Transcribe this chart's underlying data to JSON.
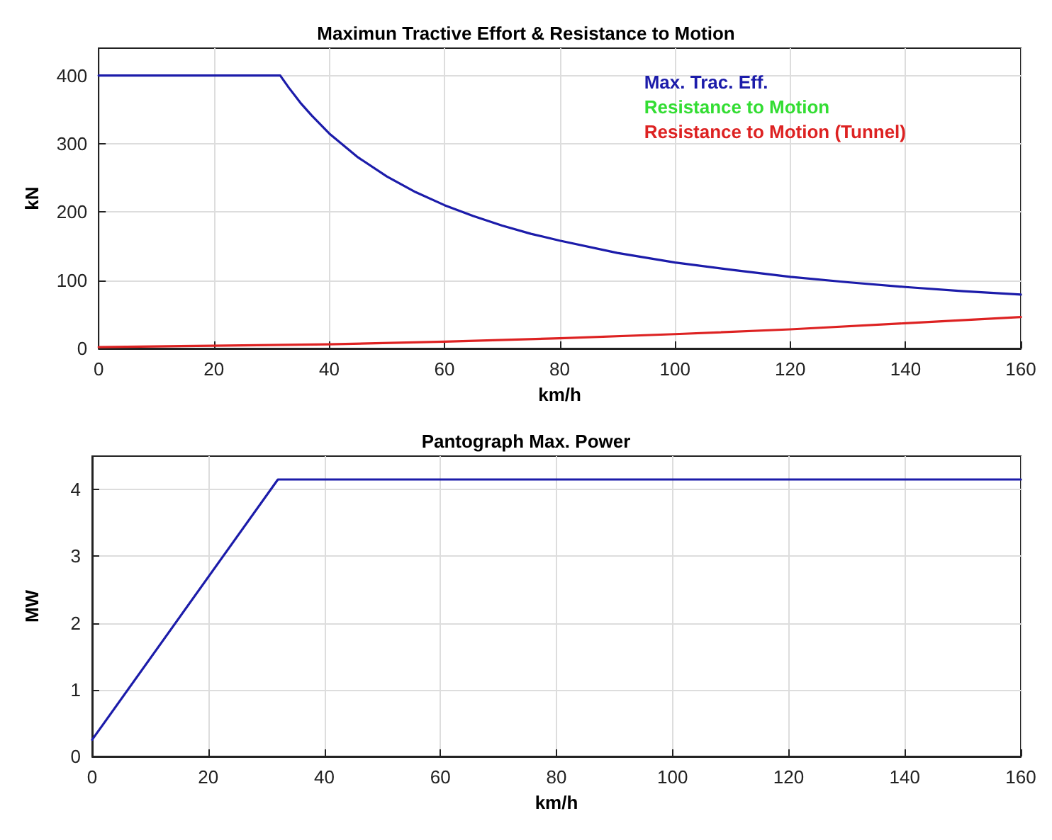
{
  "chart_data": [
    {
      "type": "line",
      "title": "Maximun Tractive Effort & Resistance to Motion",
      "xlabel": "km/h",
      "ylabel": "kN",
      "xlim": [
        0,
        160
      ],
      "xticks": [
        0,
        20,
        40,
        60,
        80,
        100,
        120,
        140,
        160
      ],
      "ylim": [
        0,
        440
      ],
      "yticks": [
        0,
        100,
        200,
        300,
        400
      ],
      "grid": true,
      "legend": "top right",
      "line_style": "solid",
      "marker": "none",
      "series": [
        {
          "name": "Max. Trac. Eff.",
          "color": "#1c1caa",
          "x": [
            0,
            31.5,
            33,
            35,
            37,
            40,
            45,
            50,
            55,
            60,
            65,
            70,
            75,
            80,
            90,
            100,
            110,
            120,
            130,
            140,
            150,
            160
          ],
          "values": [
            400,
            400,
            382,
            360,
            341,
            315,
            280,
            252,
            229,
            210,
            194,
            180,
            168,
            158,
            140,
            126,
            115,
            105,
            97,
            90,
            84,
            79
          ]
        },
        {
          "name": "Resistance to Motion",
          "color": "#33dd33"
        },
        {
          "name": "Resistance to Motion (Tunnel)",
          "color": "#dd2222",
          "x": [
            0,
            20,
            40,
            60,
            80,
            100,
            120,
            140,
            160
          ],
          "values": [
            2,
            4,
            6,
            10,
            15,
            21,
            28,
            37,
            46
          ]
        }
      ]
    },
    {
      "type": "line",
      "title": "Pantograph Max. Power",
      "xlabel": "km/h",
      "ylabel": "MW",
      "xlim": [
        0,
        160
      ],
      "xticks": [
        0,
        20,
        40,
        60,
        80,
        100,
        120,
        140,
        160
      ],
      "ylim": [
        0,
        4.5
      ],
      "yticks": [
        0,
        1,
        2,
        3,
        4
      ],
      "grid": true,
      "line_style": "solid",
      "marker": "none",
      "series": [
        {
          "color": "#1c1caa",
          "x": [
            0,
            32,
            160
          ],
          "values": [
            0.25,
            4.15,
            4.15
          ]
        }
      ]
    }
  ]
}
